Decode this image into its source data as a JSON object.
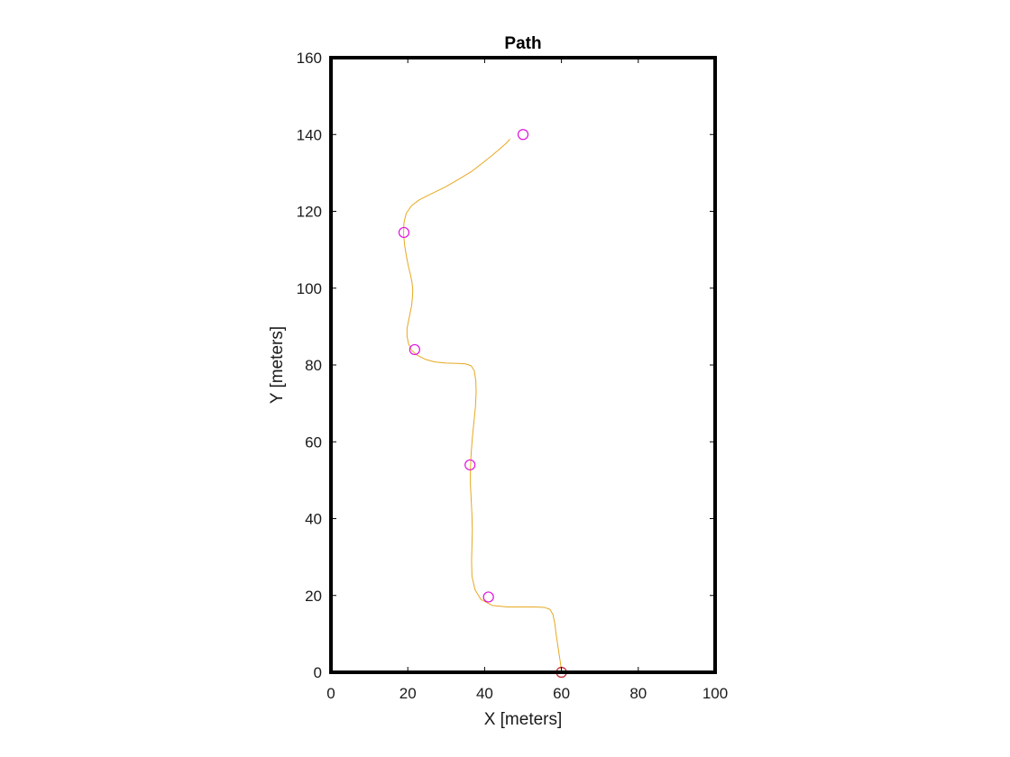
{
  "chart_data": {
    "type": "line",
    "title": "Path",
    "xlabel": "X [meters]",
    "ylabel": "Y [meters]",
    "xlim": [
      0,
      100
    ],
    "ylim": [
      0,
      160
    ],
    "xticks": [
      0,
      20,
      40,
      60,
      80,
      100
    ],
    "yticks": [
      0,
      20,
      40,
      60,
      80,
      100,
      120,
      140,
      160
    ],
    "grid": false,
    "series": [
      {
        "kind": "line",
        "color": "#e6a820",
        "x": [
          60,
          59.8,
          59.2,
          58.6,
          58.3,
          57.8,
          57,
          55.5,
          53,
          50,
          46,
          42,
          39,
          37.5,
          36.7,
          36.6,
          36.7,
          36.8,
          36.7,
          36.5,
          36.3,
          36.3,
          36.5,
          36.8,
          37.2,
          37.6,
          37.8,
          37.7,
          37.3,
          36.5,
          35,
          33,
          30,
          27,
          24.5,
          22.5,
          21,
          20.2,
          19.8,
          19.8,
          20.2,
          20.6,
          21,
          21.2,
          21.3,
          21.1,
          20.7,
          20.2,
          19.7,
          19.2,
          18.9,
          19,
          19.6,
          21,
          23,
          26,
          29.5,
          33,
          36.5,
          39.5,
          42,
          44,
          45.7,
          46.6
        ],
        "y": [
          0,
          2,
          6,
          10,
          12.5,
          15,
          16.4,
          16.9,
          17,
          17,
          17,
          17.4,
          19,
          21.5,
          25,
          29,
          33,
          37,
          41,
          45,
          49,
          53,
          57,
          61,
          65,
          69,
          73,
          76,
          78.5,
          79.8,
          80.3,
          80.4,
          80.5,
          80.8,
          81.5,
          82.5,
          83.8,
          85.5,
          87.5,
          89.5,
          91.5,
          93.5,
          95.5,
          97.5,
          99.5,
          101.5,
          103.5,
          105.5,
          108,
          111,
          114,
          117,
          119.5,
          121.5,
          123,
          124.5,
          126.2,
          128.2,
          130.3,
          132.6,
          134.6,
          136.3,
          137.8,
          138.8
        ]
      },
      {
        "kind": "markers",
        "color": "#e010e0",
        "marker": "circle",
        "x": [
          50,
          19,
          21.8,
          36.2,
          41,
          60
        ],
        "y": [
          140,
          114.5,
          84,
          54,
          19.6,
          0
        ]
      },
      {
        "kind": "marker",
        "color": "#c0392b",
        "marker": "circle",
        "x": [
          60
        ],
        "y": [
          0
        ]
      }
    ]
  }
}
